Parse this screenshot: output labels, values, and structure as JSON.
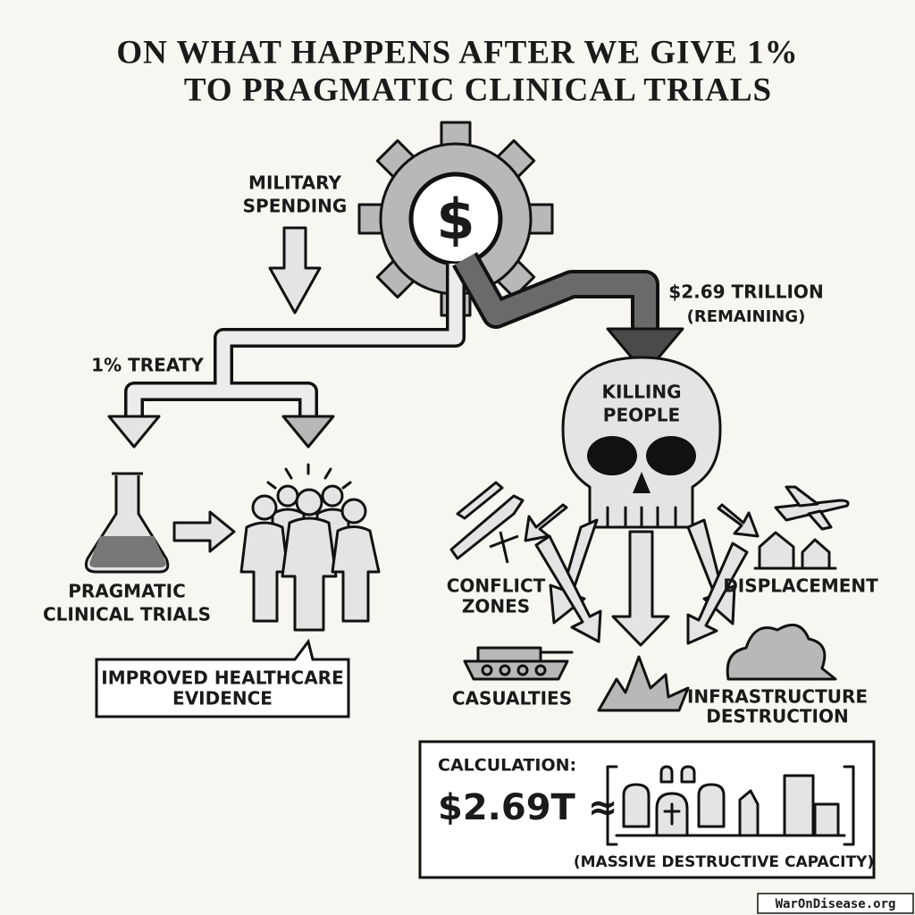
{
  "title": [
    "ON WHAT HAPPENS AFTER WE GIVE 1%",
    "TO PRAGMATIC CLINICAL TRIALS"
  ],
  "gear_symbol": "$",
  "source": [
    "MILITARY",
    "SPENDING"
  ],
  "remaining": {
    "amount": "$2.69 TRILLION",
    "note": "(REMAINING)"
  },
  "treaty": "1% TREATY",
  "skull": [
    "KILLING",
    "PEOPLE"
  ],
  "trials": [
    "PRAGMATIC",
    "CLINICAL TRIALS"
  ],
  "evidence": [
    "IMPROVED HEALTHCARE",
    "EVIDENCE"
  ],
  "outcomes": {
    "conflict": [
      "CONFLICT",
      "ZONES"
    ],
    "displacement": [
      "DISPLACEMENT"
    ],
    "casualties": [
      "CASUALTIES"
    ],
    "infrastructure": [
      "INFRASTRUCTURE",
      "DESTRUCTION"
    ]
  },
  "calculation": {
    "label": "CALCULATION:",
    "formula": "$2.69T ≈",
    "caption": "(MASSIVE DESTRUCTIVE CAPACITY)"
  },
  "watermark": "WarOnDisease.org"
}
